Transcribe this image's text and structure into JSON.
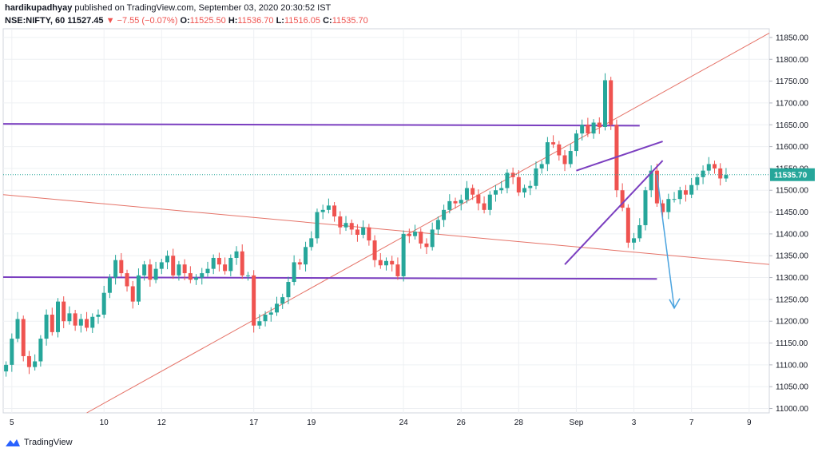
{
  "header": {
    "publisher": "hardikupadhyay",
    "published_text": "published on TradingView.com, September 03, 2020 20:30:52 IST",
    "symbol": "NSE:NIFTY, 60",
    "last": "11527.45",
    "change": "▼ −7.55 (−0.07%)",
    "o_label": "O:",
    "o_value": "11525.50",
    "h_label": "H:",
    "h_value": "11536.70",
    "l_label": "L:",
    "l_value": "11516.05",
    "c_label": "C:",
    "c_value": "11535.70"
  },
  "footer": {
    "brand": "TradingView",
    "icon": "tradingview-logo-icon"
  },
  "colors": {
    "up": "#26a69a",
    "down": "#ef5350",
    "purple": "#7b3fc0",
    "trend": "#e57368",
    "arrow": "#4aa3df",
    "grid": "#eef0f3"
  },
  "chart_data": {
    "type": "candlestick",
    "last_price_label": "11535.70",
    "y_ticks": [
      "11000.00",
      "11050.00",
      "11100.00",
      "11150.00",
      "11200.00",
      "11250.00",
      "11300.00",
      "11350.00",
      "11400.00",
      "11450.00",
      "11500.00",
      "11550.00",
      "11600.00",
      "11650.00",
      "11700.00",
      "11750.00",
      "11800.00",
      "11850.00"
    ],
    "ylim": [
      10990,
      11870
    ],
    "x_ticks": [
      "5",
      "10",
      "12",
      "17",
      "19",
      "24",
      "26",
      "28",
      "Sep",
      "3",
      "7",
      "9"
    ],
    "x_tick_slots": [
      1,
      17,
      27,
      43,
      53,
      69,
      79,
      89,
      99,
      109,
      119,
      129
    ],
    "x_slots": 133,
    "closes": [
      11100,
      11160,
      11205,
      11120,
      11095,
      11108,
      11160,
      11215,
      11175,
      11245,
      11200,
      11218,
      11190,
      11205,
      11185,
      11210,
      11215,
      11265,
      11300,
      11340,
      11310,
      11280,
      11245,
      11305,
      11330,
      11295,
      11320,
      11335,
      11350,
      11305,
      11330,
      11310,
      11295,
      11300,
      11310,
      11320,
      11345,
      11330,
      11315,
      11345,
      11360,
      11305,
      11305,
      11190,
      11200,
      11215,
      11220,
      11240,
      11255,
      11290,
      11335,
      11330,
      11370,
      11390,
      11450,
      11455,
      11465,
      11440,
      11415,
      11425,
      11410,
      11398,
      11415,
      11385,
      11340,
      11328,
      11338,
      11330,
      11303,
      11400,
      11395,
      11405,
      11378,
      11370,
      11410,
      11432,
      11455,
      11475,
      11470,
      11478,
      11505,
      11490,
      11470,
      11455,
      11490,
      11500,
      11505,
      11540,
      11530,
      11495,
      11505,
      11510,
      11550,
      11560,
      11610,
      11605,
      11580,
      11560,
      11590,
      11630,
      11650,
      11630,
      11655,
      11645,
      11752,
      11650,
      11500,
      11460,
      11380,
      11390,
      11420,
      11500,
      11545,
      11470,
      11450,
      11480,
      11480,
      11500,
      11490,
      11512,
      11530,
      11545,
      11560,
      11550,
      11527,
      11535
    ],
    "annotations": {
      "horizontal_lines": [
        11650,
        11298
      ],
      "trend_lines": "rising trendline, falling trendline, rising wedge",
      "projection": "down arrow toward 11230"
    }
  }
}
